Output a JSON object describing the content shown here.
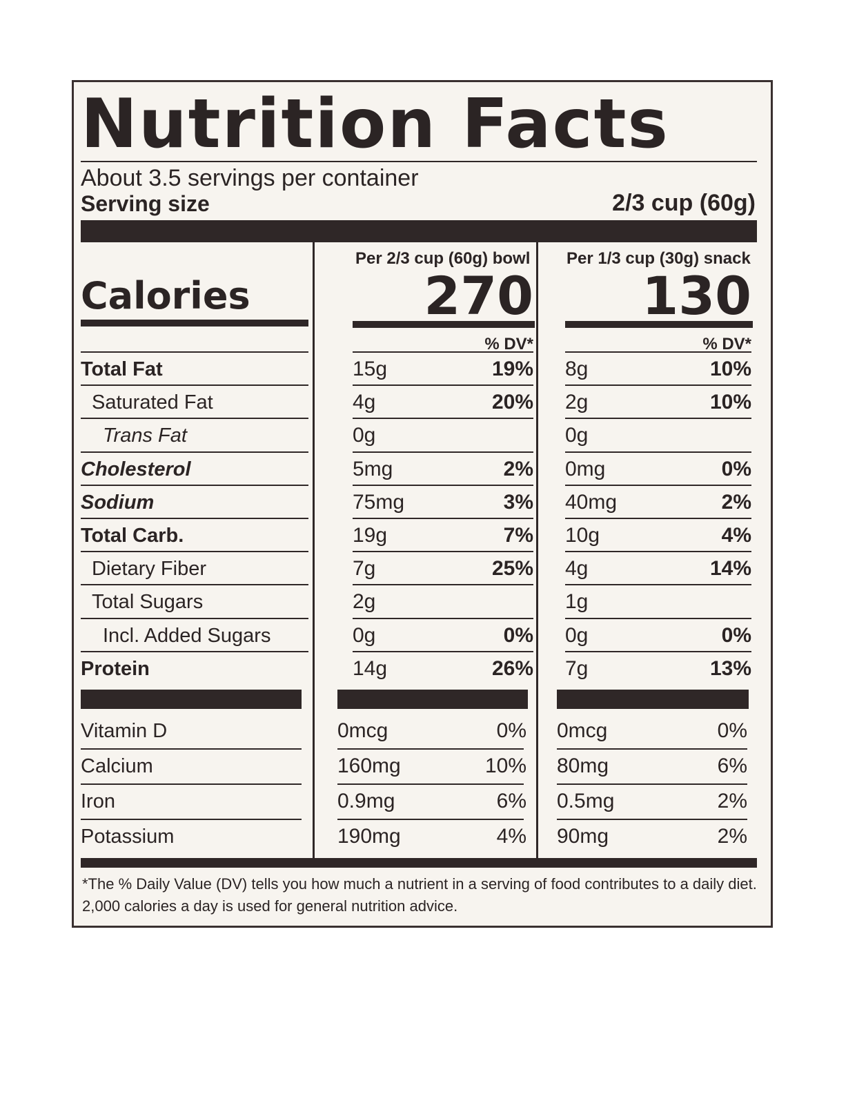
{
  "label": {
    "title": "Nutrition Facts",
    "servings_per_container": "About 3.5 servings per container",
    "serving_size_label": "Serving size",
    "serving_size_value": "2/3 cup (60g)",
    "calories_label": "Calories",
    "columns": [
      {
        "heading": "Per 2/3 cup (60g) bowl",
        "calories": "270",
        "dv_heading": "% DV*"
      },
      {
        "heading": "Per 1/3 cup (30g) snack",
        "calories": "130",
        "dv_heading": "% DV*"
      }
    ],
    "nutrients": [
      {
        "name": "Total Fat",
        "style": "bold",
        "indent": 0,
        "bowl_amount": "15g",
        "bowl_dv": "19%",
        "snack_amount": "8g",
        "snack_dv": "10%"
      },
      {
        "name": "Saturated Fat",
        "style": "normal",
        "indent": 1,
        "bowl_amount": "4g",
        "bowl_dv": "20%",
        "snack_amount": "2g",
        "snack_dv": "10%"
      },
      {
        "name": "Trans Fat",
        "style": "italic",
        "indent": 2,
        "bowl_amount": "0g",
        "bowl_dv": "",
        "snack_amount": "0g",
        "snack_dv": ""
      },
      {
        "name": "Cholesterol",
        "style": "bold-italic",
        "indent": 0,
        "bowl_amount": "5mg",
        "bowl_dv": "2%",
        "snack_amount": "0mg",
        "snack_dv": "0%"
      },
      {
        "name": "Sodium",
        "style": "bold-italic",
        "indent": 0,
        "bowl_amount": "75mg",
        "bowl_dv": "3%",
        "snack_amount": "40mg",
        "snack_dv": "2%"
      },
      {
        "name": "Total Carb.",
        "style": "bold",
        "indent": 0,
        "bowl_amount": "19g",
        "bowl_dv": "7%",
        "snack_amount": "10g",
        "snack_dv": "4%"
      },
      {
        "name": "Dietary Fiber",
        "style": "normal",
        "indent": 1,
        "bowl_amount": "7g",
        "bowl_dv": "25%",
        "snack_amount": "4g",
        "snack_dv": "14%"
      },
      {
        "name": "Total Sugars",
        "style": "normal",
        "indent": 1,
        "bowl_amount": "2g",
        "bowl_dv": "",
        "snack_amount": "1g",
        "snack_dv": ""
      },
      {
        "name": "Incl. Added Sugars",
        "style": "normal",
        "indent": 2,
        "bowl_amount": "0g",
        "bowl_dv": "0%",
        "snack_amount": "0g",
        "snack_dv": "0%"
      },
      {
        "name": "Protein",
        "style": "bold",
        "indent": 0,
        "bowl_amount": "14g",
        "bowl_dv": "26%",
        "snack_amount": "7g",
        "snack_dv": "13%"
      }
    ],
    "vitamins": [
      {
        "name": "Vitamin D",
        "bowl_amount": "0mcg",
        "bowl_dv": "0%",
        "snack_amount": "0mcg",
        "snack_dv": "0%"
      },
      {
        "name": "Calcium",
        "bowl_amount": "160mg",
        "bowl_dv": "10%",
        "snack_amount": "80mg",
        "snack_dv": "6%"
      },
      {
        "name": "Iron",
        "bowl_amount": "0.9mg",
        "bowl_dv": "6%",
        "snack_amount": "0.5mg",
        "snack_dv": "2%"
      },
      {
        "name": "Potassium",
        "bowl_amount": "190mg",
        "bowl_dv": "4%",
        "snack_amount": "90mg",
        "snack_dv": "2%"
      }
    ],
    "footnote": "*The % Daily Value (DV) tells you how much a nutrient in a serving of food contributes to a daily diet. 2,000 calories a day is used for general nutrition advice."
  }
}
